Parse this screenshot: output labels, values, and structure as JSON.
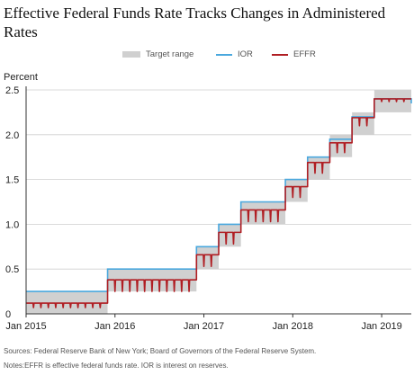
{
  "chart_data": {
    "type": "line",
    "title": "Effective Federal Funds Rate Tracks Changes in Administered Rates",
    "ylabel": "Percent",
    "xlabel": "",
    "ylim": [
      0,
      2.5
    ],
    "xlim": [
      "2015-01",
      "2019-05"
    ],
    "y_ticks": [
      "0",
      "0.5",
      "1.0",
      "1.5",
      "2.0",
      "2.5"
    ],
    "x_ticks": [
      {
        "label": "Jan 2015",
        "date": "2015-01"
      },
      {
        "label": "Jan 2016",
        "date": "2016-01"
      },
      {
        "label": "Jan 2017",
        "date": "2017-01"
      },
      {
        "label": "Jan 2018",
        "date": "2018-01"
      },
      {
        "label": "Jan 2019",
        "date": "2019-01"
      }
    ],
    "grid": "horizontal",
    "legend_position": "top",
    "target_range": {
      "name": "Target range",
      "color": "#d0d0d0",
      "steps": [
        {
          "start": "2015-01",
          "end": "2015-12",
          "low": 0.0,
          "high": 0.25
        },
        {
          "start": "2015-12",
          "end": "2016-12",
          "low": 0.25,
          "high": 0.5
        },
        {
          "start": "2016-12",
          "end": "2017-03",
          "low": 0.5,
          "high": 0.75
        },
        {
          "start": "2017-03",
          "end": "2017-06",
          "low": 0.75,
          "high": 1.0
        },
        {
          "start": "2017-06",
          "end": "2017-12",
          "low": 1.0,
          "high": 1.25
        },
        {
          "start": "2017-12",
          "end": "2018-03",
          "low": 1.25,
          "high": 1.5
        },
        {
          "start": "2018-03",
          "end": "2018-06",
          "low": 1.5,
          "high": 1.75
        },
        {
          "start": "2018-06",
          "end": "2018-09",
          "low": 1.75,
          "high": 2.0
        },
        {
          "start": "2018-09",
          "end": "2018-12",
          "low": 2.0,
          "high": 2.25
        },
        {
          "start": "2018-12",
          "end": "2019-05",
          "low": 2.25,
          "high": 2.5
        }
      ]
    },
    "series": [
      {
        "name": "IOR",
        "color": "#4aa8de",
        "steps": [
          {
            "start": "2015-01",
            "end": "2015-12",
            "value": 0.25
          },
          {
            "start": "2015-12",
            "end": "2016-12",
            "value": 0.5
          },
          {
            "start": "2016-12",
            "end": "2017-03",
            "value": 0.75
          },
          {
            "start": "2017-03",
            "end": "2017-06",
            "value": 1.0
          },
          {
            "start": "2017-06",
            "end": "2017-12",
            "value": 1.25
          },
          {
            "start": "2017-12",
            "end": "2018-03",
            "value": 1.5
          },
          {
            "start": "2018-03",
            "end": "2018-06",
            "value": 1.75
          },
          {
            "start": "2018-06",
            "end": "2018-09",
            "value": 1.95
          },
          {
            "start": "2018-09",
            "end": "2018-12",
            "value": 2.2
          },
          {
            "start": "2018-12",
            "end": "2019-05",
            "value": 2.4
          },
          {
            "start": "2019-05",
            "end": "2019-05",
            "value": 2.35
          }
        ]
      },
      {
        "name": "EFFR",
        "color": "#b01e23",
        "steps": [
          {
            "start": "2015-01",
            "end": "2015-12",
            "value": 0.12,
            "dips": 0.07
          },
          {
            "start": "2015-12",
            "end": "2016-12",
            "value": 0.38,
            "dips": 0.25
          },
          {
            "start": "2016-12",
            "end": "2017-03",
            "value": 0.66,
            "dips": 0.53
          },
          {
            "start": "2017-03",
            "end": "2017-06",
            "value": 0.91,
            "dips": 0.78
          },
          {
            "start": "2017-06",
            "end": "2017-12",
            "value": 1.16,
            "dips": 1.03
          },
          {
            "start": "2017-12",
            "end": "2018-03",
            "value": 1.42,
            "dips": 1.3
          },
          {
            "start": "2018-03",
            "end": "2018-06",
            "value": 1.69,
            "dips": 1.57
          },
          {
            "start": "2018-06",
            "end": "2018-09",
            "value": 1.91,
            "dips": 1.8
          },
          {
            "start": "2018-09",
            "end": "2018-12",
            "value": 2.19,
            "dips": 2.1
          },
          {
            "start": "2018-12",
            "end": "2019-05",
            "value": 2.4,
            "dips": 2.37
          }
        ]
      }
    ]
  },
  "legend": {
    "target_range": "Target range",
    "ior": "IOR",
    "effr": "EFFR"
  },
  "footer": {
    "sources": "Sources: Federal Reserve Bank of New York; Board of Governors of the Federal Reserve System.",
    "notes": "Notes:EFFR is effective federal funds rate. IOR is interest on reserves."
  }
}
